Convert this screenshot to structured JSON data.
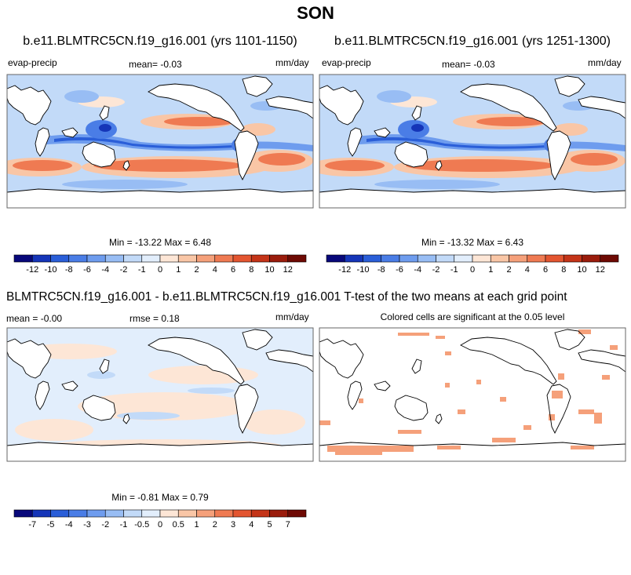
{
  "title": "SON",
  "panels": [
    {
      "id": "p1",
      "title": "b.e11.BLMTRC5CN.f19_g16.001 (yrs 1101-1150)",
      "left_label": "evap-precip",
      "mean_label": "mean=  -0.03",
      "units": "mm/day",
      "minmax": "Min = -13.22 Max =   6.48"
    },
    {
      "id": "p2",
      "title": "b.e11.BLMTRC5CN.f19_g16.001 (yrs 1251-1300)",
      "left_label": "evap-precip",
      "mean_label": "mean=  -0.03",
      "units": "mm/day",
      "minmax": "Min = -13.32 Max =   6.43"
    },
    {
      "id": "p3",
      "left_label": "mean =  -0.00",
      "rmse_label": "rmse =   0.18",
      "units": "mm/day",
      "minmax": "Min =  -0.81 Max =   0.79"
    },
    {
      "id": "p4",
      "subtitle": "Colored cells are significant at the 0.05 level"
    }
  ],
  "diff_title": "BLMTRC5CN.f19_g16.001 - b.e11.BLMTRC5CN.f19_g16.001 T-test of the two means at each grid point",
  "colorbars": {
    "main": {
      "labels": [
        "-12",
        "-10",
        "-8",
        "-6",
        "-4",
        "-2",
        "-1",
        "0",
        "1",
        "2",
        "4",
        "6",
        "8",
        "10",
        "12"
      ],
      "colors": [
        "#08087a",
        "#1535b8",
        "#2a5ed8",
        "#4a7de6",
        "#6e9cee",
        "#98bdf4",
        "#c2daf8",
        "#e2eefc",
        "#fde6d6",
        "#f9c6a6",
        "#f5a07a",
        "#ef7a52",
        "#e35530",
        "#c43418",
        "#9a1c0c",
        "#6e0a04"
      ]
    },
    "diff": {
      "labels": [
        "-7",
        "-5",
        "-4",
        "-3",
        "-2",
        "-1",
        "-0.5",
        "0",
        "0.5",
        "1",
        "2",
        "3",
        "4",
        "5",
        "7"
      ],
      "colors": [
        "#08087a",
        "#1535b8",
        "#2a5ed8",
        "#4a7de6",
        "#6e9cee",
        "#98bdf4",
        "#c2daf8",
        "#e2eefc",
        "#fde6d6",
        "#f9c6a6",
        "#f5a07a",
        "#ef7a52",
        "#e35530",
        "#c43418",
        "#9a1c0c",
        "#6e0a04"
      ]
    }
  },
  "chart_data": [
    {
      "type": "heatmap",
      "title": "b.e11.BLMTRC5CN.f19_g16.001 (yrs 1101-1150)",
      "variable": "evap-precip",
      "units": "mm/day",
      "mean": -0.03,
      "min": -13.22,
      "max": 6.48,
      "levels": [
        -12,
        -10,
        -8,
        -6,
        -4,
        -2,
        -1,
        0,
        1,
        2,
        4,
        6,
        8,
        10,
        12
      ]
    },
    {
      "type": "heatmap",
      "title": "b.e11.BLMTRC5CN.f19_g16.001 (yrs 1251-1300)",
      "variable": "evap-precip",
      "units": "mm/day",
      "mean": -0.03,
      "min": -13.32,
      "max": 6.43,
      "levels": [
        -12,
        -10,
        -8,
        -6,
        -4,
        -2,
        -1,
        0,
        1,
        2,
        4,
        6,
        8,
        10,
        12
      ]
    },
    {
      "type": "heatmap",
      "title": "BLMTRC5CN.f19_g16.001 - b.e11.BLMTRC5CN.f19_g16.001",
      "units": "mm/day",
      "mean": -0.0,
      "rmse": 0.18,
      "min": -0.81,
      "max": 0.79,
      "levels": [
        -7,
        -5,
        -4,
        -3,
        -2,
        -1,
        -0.5,
        0,
        0.5,
        1,
        2,
        3,
        4,
        5,
        7
      ]
    },
    {
      "type": "heatmap",
      "title": "T-test of the two means at each grid point",
      "note": "Colored cells are significant at the 0.05 level",
      "significance_level": 0.05
    }
  ]
}
